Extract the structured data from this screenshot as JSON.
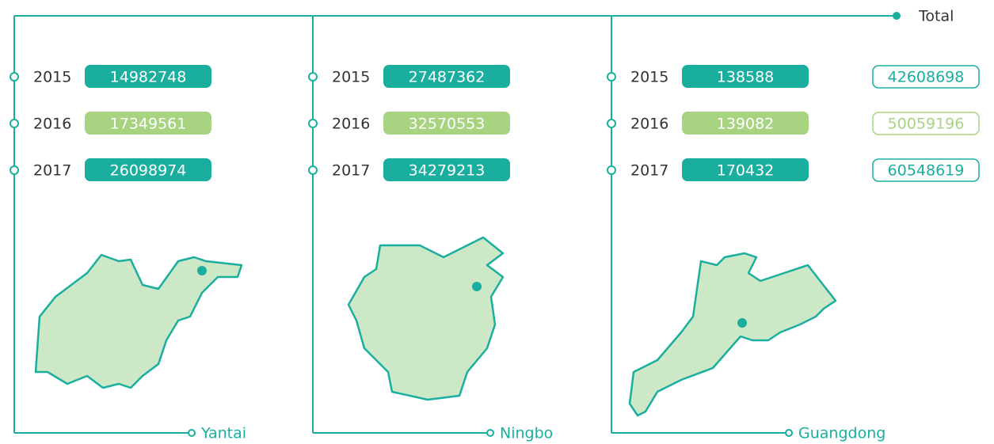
{
  "total": {
    "label": "Total",
    "values": [
      42608698,
      50059196,
      60548619
    ]
  },
  "regions": [
    {
      "name": "Yantai",
      "rows": [
        {
          "year": 2015,
          "value": 14982748
        },
        {
          "year": 2016,
          "value": 17349561
        },
        {
          "year": 2017,
          "value": 26098974
        }
      ]
    },
    {
      "name": "Ningbo",
      "rows": [
        {
          "year": 2015,
          "value": 27487362
        },
        {
          "year": 2016,
          "value": 32570553
        },
        {
          "year": 2017,
          "value": 34279213
        }
      ]
    },
    {
      "name": "Guangdong",
      "rows": [
        {
          "year": 2015,
          "value": 138588
        },
        {
          "year": 2016,
          "value": 139082
        },
        {
          "year": 2017,
          "value": 170432
        }
      ]
    }
  ]
}
